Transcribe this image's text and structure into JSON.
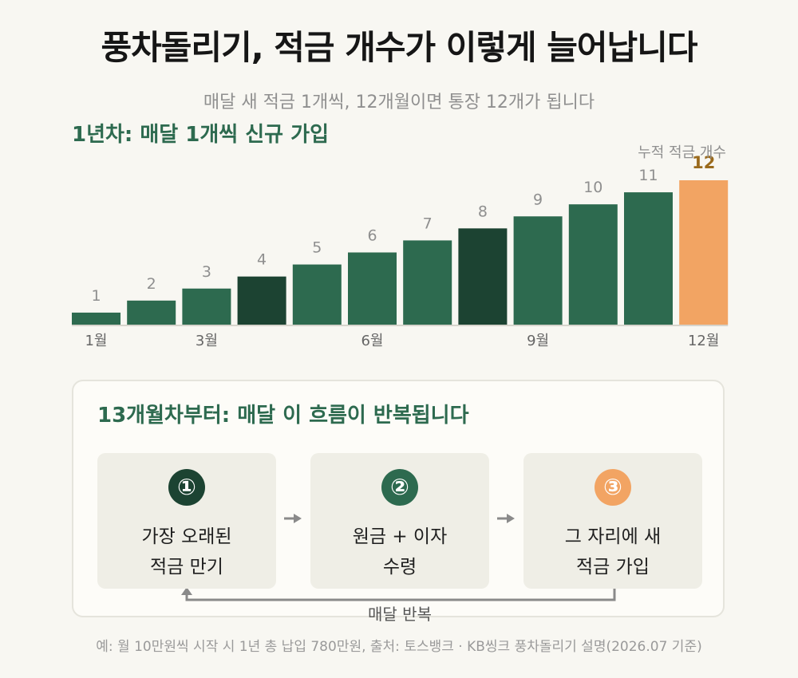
{
  "title": "풍차돌리기, 적금 개수가 이렇게 늘어납니다",
  "subtitle": "매달 새 적금 1개씩, 12개월이면 통장 12개가 됩니다",
  "section1_title": "1년차: 매달 1개씩 신규 가입",
  "chart_data": {
    "type": "bar",
    "categories": [
      "1",
      "2",
      "3",
      "4",
      "5",
      "6",
      "7",
      "8",
      "9",
      "10",
      "11",
      "12"
    ],
    "values": [
      1,
      2,
      3,
      4,
      5,
      6,
      7,
      8,
      9,
      10,
      11,
      12
    ],
    "x_tick_labels": [
      {
        "index": 0,
        "label": "1월"
      },
      {
        "index": 2,
        "label": "3월"
      },
      {
        "index": 5,
        "label": "6월"
      },
      {
        "index": 8,
        "label": "9월"
      },
      {
        "index": 11,
        "label": "12월"
      }
    ],
    "annotation": "누적 적금 개수",
    "ylim": [
      0,
      12
    ],
    "grid": false,
    "colors": {
      "primary": "#2d6a4f",
      "dark": "#1c4332",
      "highlight": "#f2a463",
      "highlight_text": "#9a6a1c",
      "label": "#8f8f8f",
      "baseline": "#d6d4cc"
    }
  },
  "section2": {
    "title": "13개월차부터: 매달 이 흐름이 반복됩니다",
    "steps": [
      {
        "number": "①",
        "line1": "가장 오래된",
        "line2": "적금 만기",
        "color": "#1c4332"
      },
      {
        "number": "②",
        "line1": "원금 + 이자",
        "line2": "수령",
        "color": "#2d6a4f"
      },
      {
        "number": "③",
        "line1": "그 자리에 새",
        "line2": "적금 가입",
        "color": "#f2a463"
      }
    ],
    "loop_label": "매달 반복"
  },
  "footnote": "예: 월 10만원씩 시작 시 1년 총 납입 780만원, 출처: 토스뱅크 · KB씽크 풍차돌리기 설명(2026.07 기준)"
}
